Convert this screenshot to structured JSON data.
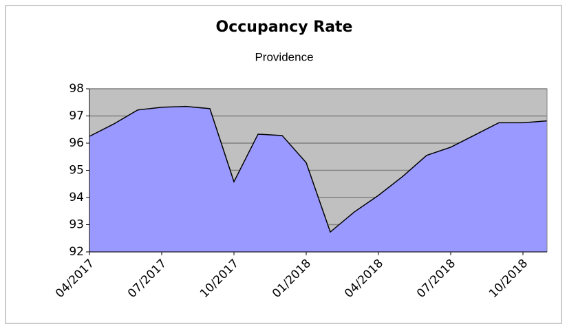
{
  "chart_data": {
    "type": "area",
    "title": "Occupancy Rate",
    "subtitle": "Providence",
    "categories": [
      "04/2017",
      null,
      null,
      "07/2017",
      null,
      null,
      "10/2017",
      null,
      null,
      "01/2018",
      null,
      null,
      "04/2018",
      null,
      null,
      "07/2018",
      null,
      null,
      "10/2018",
      null
    ],
    "series": [
      {
        "name": "Providence",
        "color": "#9999ff",
        "values": [
          96.25,
          96.7,
          97.22,
          97.32,
          97.35,
          97.27,
          94.58,
          96.33,
          96.28,
          95.28,
          92.73,
          93.47,
          94.08,
          94.77,
          95.55,
          95.85,
          96.3,
          96.75,
          96.75,
          96.82
        ]
      }
    ],
    "ylim": [
      92,
      98
    ],
    "yticks": [
      92,
      93,
      94,
      95,
      96,
      97,
      98
    ],
    "grid": true,
    "background": "#c0c0c0"
  }
}
